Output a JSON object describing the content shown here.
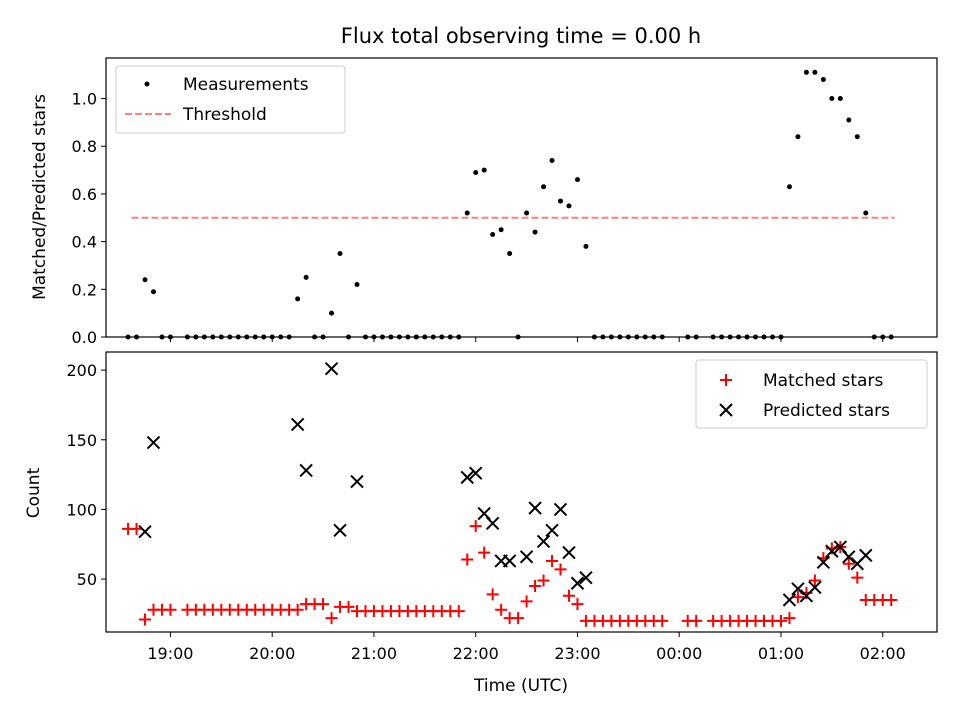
{
  "chart_data": [
    {
      "type": "scatter",
      "title": "Flux total observing time = 0.00 h",
      "ylabel": "Matched/Predicted stars",
      "xlabel": "",
      "x_unit": "hours (UTC, continuing past midnight)",
      "xlim": [
        "18:22",
        "02:32"
      ],
      "ylim": [
        0,
        1.17
      ],
      "yticks": [
        0.0,
        0.2,
        0.4,
        0.6,
        0.8,
        1.0
      ],
      "ytick_labels": [
        "0.0",
        "0.2",
        "0.4",
        "0.6",
        "0.8",
        "1.0"
      ],
      "grid": false,
      "legend_position": "upper left",
      "legend": [
        "Measurements",
        "Threshold"
      ],
      "series": [
        {
          "name": "Measurements",
          "marker": "dot",
          "color": "#000000",
          "points": [
            [
              "18:35",
              0
            ],
            [
              "18:40",
              0
            ],
            [
              "18:45",
              0.24
            ],
            [
              "18:50",
              0.19
            ],
            [
              "18:55",
              0
            ],
            [
              "19:00",
              0
            ],
            [
              "19:10",
              0
            ],
            [
              "19:15",
              0
            ],
            [
              "19:20",
              0
            ],
            [
              "19:25",
              0
            ],
            [
              "19:30",
              0
            ],
            [
              "19:35",
              0
            ],
            [
              "19:40",
              0
            ],
            [
              "19:45",
              0
            ],
            [
              "19:50",
              0
            ],
            [
              "19:55",
              0
            ],
            [
              "20:00",
              0
            ],
            [
              "20:05",
              0
            ],
            [
              "20:10",
              0
            ],
            [
              "20:15",
              0.16
            ],
            [
              "20:20",
              0.25
            ],
            [
              "20:25",
              0
            ],
            [
              "20:30",
              0
            ],
            [
              "20:35",
              0.1
            ],
            [
              "20:40",
              0.35
            ],
            [
              "20:45",
              0
            ],
            [
              "20:50",
              0.22
            ],
            [
              "20:55",
              0
            ],
            [
              "21:00",
              0
            ],
            [
              "21:05",
              0
            ],
            [
              "21:10",
              0
            ],
            [
              "21:15",
              0
            ],
            [
              "21:20",
              0
            ],
            [
              "21:25",
              0
            ],
            [
              "21:30",
              0
            ],
            [
              "21:35",
              0
            ],
            [
              "21:40",
              0
            ],
            [
              "21:45",
              0
            ],
            [
              "21:50",
              0
            ],
            [
              "21:55",
              0.52
            ],
            [
              "22:00",
              0.69
            ],
            [
              "22:05",
              0.7
            ],
            [
              "22:10",
              0.43
            ],
            [
              "22:15",
              0.45
            ],
            [
              "22:20",
              0.35
            ],
            [
              "22:25",
              0
            ],
            [
              "22:30",
              0.52
            ],
            [
              "22:35",
              0.44
            ],
            [
              "22:40",
              0.63
            ],
            [
              "22:45",
              0.74
            ],
            [
              "22:50",
              0.57
            ],
            [
              "22:55",
              0.55
            ],
            [
              "23:00",
              0.66
            ],
            [
              "23:05",
              0.38
            ],
            [
              "23:10",
              0
            ],
            [
              "23:15",
              0
            ],
            [
              "23:20",
              0
            ],
            [
              "23:25",
              0
            ],
            [
              "23:30",
              0
            ],
            [
              "23:35",
              0
            ],
            [
              "23:40",
              0
            ],
            [
              "23:45",
              0
            ],
            [
              "23:50",
              0
            ],
            [
              "00:05",
              0
            ],
            [
              "00:10",
              0
            ],
            [
              "00:20",
              0
            ],
            [
              "00:25",
              0
            ],
            [
              "00:30",
              0
            ],
            [
              "00:35",
              0
            ],
            [
              "00:40",
              0
            ],
            [
              "00:45",
              0
            ],
            [
              "00:50",
              0
            ],
            [
              "00:55",
              0
            ],
            [
              "01:00",
              0
            ],
            [
              "01:05",
              0.63
            ],
            [
              "01:10",
              0.84
            ],
            [
              "01:15",
              1.11
            ],
            [
              "01:20",
              1.11
            ],
            [
              "01:25",
              1.08
            ],
            [
              "01:30",
              1.0
            ],
            [
              "01:35",
              1.0
            ],
            [
              "01:40",
              0.91
            ],
            [
              "01:45",
              0.84
            ],
            [
              "01:50",
              0.52
            ],
            [
              "01:55",
              0
            ],
            [
              "02:00",
              0
            ],
            [
              "02:05",
              0
            ]
          ]
        },
        {
          "name": "Threshold",
          "style": "dashed",
          "color": "#ff7f7f",
          "x": [
            "18:37",
            "02:07"
          ],
          "y": 0.5
        }
      ]
    },
    {
      "type": "scatter",
      "title": "",
      "ylabel": "Count",
      "xlabel": "Time (UTC)",
      "x_unit": "hours (UTC, continuing past midnight)",
      "xlim": [
        "18:22",
        "02:32"
      ],
      "ylim": [
        12,
        213
      ],
      "yticks": [
        50,
        100,
        150,
        200
      ],
      "ytick_labels": [
        "50",
        "100",
        "150",
        "200"
      ],
      "xticks": [
        "19:00",
        "20:00",
        "21:00",
        "22:00",
        "23:00",
        "00:00",
        "01:00",
        "02:00"
      ],
      "xtick_labels": [
        "19:00",
        "20:00",
        "21:00",
        "22:00",
        "23:00",
        "00:00",
        "01:00",
        "02:00"
      ],
      "grid": false,
      "legend_position": "upper right",
      "legend": [
        "Matched stars",
        "Predicted stars"
      ],
      "series": [
        {
          "name": "Matched stars",
          "marker": "plus",
          "color": "#ff0000",
          "points": [
            [
              "18:35",
              86
            ],
            [
              "18:40",
              86
            ],
            [
              "18:45",
              21
            ],
            [
              "18:50",
              28
            ],
            [
              "18:55",
              28
            ],
            [
              "19:00",
              28
            ],
            [
              "19:10",
              28
            ],
            [
              "19:15",
              28
            ],
            [
              "19:20",
              28
            ],
            [
              "19:25",
              28
            ],
            [
              "19:30",
              28
            ],
            [
              "19:35",
              28
            ],
            [
              "19:40",
              28
            ],
            [
              "19:45",
              28
            ],
            [
              "19:50",
              28
            ],
            [
              "19:55",
              28
            ],
            [
              "20:00",
              28
            ],
            [
              "20:05",
              28
            ],
            [
              "20:10",
              28
            ],
            [
              "20:15",
              28
            ],
            [
              "20:20",
              32
            ],
            [
              "20:25",
              32
            ],
            [
              "20:30",
              32
            ],
            [
              "20:35",
              22
            ],
            [
              "20:40",
              30
            ],
            [
              "20:45",
              30
            ],
            [
              "20:50",
              27
            ],
            [
              "20:55",
              27
            ],
            [
              "21:00",
              27
            ],
            [
              "21:05",
              27
            ],
            [
              "21:10",
              27
            ],
            [
              "21:15",
              27
            ],
            [
              "21:20",
              27
            ],
            [
              "21:25",
              27
            ],
            [
              "21:30",
              27
            ],
            [
              "21:35",
              27
            ],
            [
              "21:40",
              27
            ],
            [
              "21:45",
              27
            ],
            [
              "21:50",
              27
            ],
            [
              "21:55",
              64
            ],
            [
              "22:00",
              88
            ],
            [
              "22:05",
              69
            ],
            [
              "22:10",
              39
            ],
            [
              "22:15",
              28
            ],
            [
              "22:20",
              22
            ],
            [
              "22:25",
              22
            ],
            [
              "22:30",
              34
            ],
            [
              "22:35",
              45
            ],
            [
              "22:40",
              49
            ],
            [
              "22:45",
              63
            ],
            [
              "22:50",
              57
            ],
            [
              "22:55",
              38
            ],
            [
              "23:00",
              32
            ],
            [
              "23:05",
              20
            ],
            [
              "23:10",
              20
            ],
            [
              "23:15",
              20
            ],
            [
              "23:20",
              20
            ],
            [
              "23:25",
              20
            ],
            [
              "23:30",
              20
            ],
            [
              "23:35",
              20
            ],
            [
              "23:40",
              20
            ],
            [
              "23:45",
              20
            ],
            [
              "23:50",
              20
            ],
            [
              "00:05",
              20
            ],
            [
              "00:10",
              20
            ],
            [
              "00:20",
              20
            ],
            [
              "00:25",
              20
            ],
            [
              "00:30",
              20
            ],
            [
              "00:35",
              20
            ],
            [
              "00:40",
              20
            ],
            [
              "00:45",
              20
            ],
            [
              "00:50",
              20
            ],
            [
              "00:55",
              20
            ],
            [
              "01:00",
              20
            ],
            [
              "01:05",
              22
            ],
            [
              "01:10",
              37
            ],
            [
              "01:15",
              40
            ],
            [
              "01:20",
              49
            ],
            [
              "01:25",
              65
            ],
            [
              "01:30",
              72
            ],
            [
              "01:35",
              73
            ],
            [
              "01:40",
              61
            ],
            [
              "01:45",
              51
            ],
            [
              "01:50",
              35
            ],
            [
              "01:55",
              35
            ],
            [
              "02:00",
              35
            ],
            [
              "02:05",
              35
            ]
          ]
        },
        {
          "name": "Predicted stars",
          "marker": "x",
          "color": "#000000",
          "points": [
            [
              "18:45",
              84
            ],
            [
              "18:50",
              148
            ],
            [
              "20:15",
              161
            ],
            [
              "20:20",
              128
            ],
            [
              "20:35",
              201
            ],
            [
              "20:40",
              85
            ],
            [
              "20:50",
              120
            ],
            [
              "21:55",
              123
            ],
            [
              "22:00",
              126
            ],
            [
              "22:05",
              97
            ],
            [
              "22:10",
              90
            ],
            [
              "22:15",
              63
            ],
            [
              "22:20",
              63
            ],
            [
              "22:30",
              66
            ],
            [
              "22:35",
              101
            ],
            [
              "22:40",
              77
            ],
            [
              "22:45",
              85
            ],
            [
              "22:50",
              100
            ],
            [
              "22:55",
              69
            ],
            [
              "23:00",
              47
            ],
            [
              "23:05",
              51
            ],
            [
              "01:05",
              35
            ],
            [
              "01:10",
              43
            ],
            [
              "01:15",
              38
            ],
            [
              "01:20",
              44
            ],
            [
              "01:25",
              62
            ],
            [
              "01:30",
              70
            ],
            [
              "01:35",
              73
            ],
            [
              "01:40",
              66
            ],
            [
              "01:45",
              61
            ],
            [
              "01:50",
              67
            ]
          ]
        }
      ]
    }
  ]
}
